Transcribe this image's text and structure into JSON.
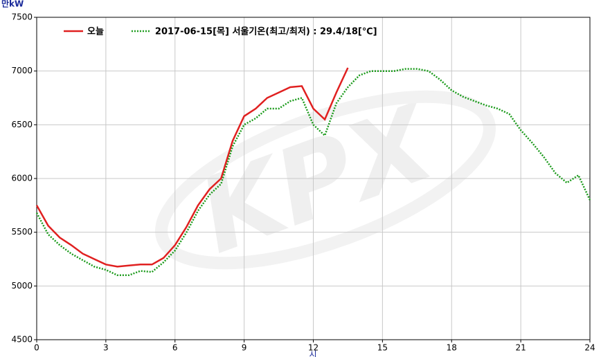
{
  "chart_data": {
    "type": "line",
    "ylabel": "만kW",
    "xlabel": "시",
    "watermark": "KPX",
    "x": [
      0,
      0.5,
      1,
      1.5,
      2,
      2.5,
      3,
      3.5,
      4,
      4.5,
      5,
      5.5,
      6,
      6.5,
      7,
      7.5,
      8,
      8.5,
      9,
      9.5,
      10,
      10.5,
      11,
      11.5,
      12,
      12.5,
      13,
      13.5,
      14,
      14.5,
      15,
      15.5,
      16,
      16.5,
      17,
      17.5,
      18,
      18.5,
      19,
      19.5,
      20,
      20.5,
      21,
      21.5,
      22,
      22.5,
      23,
      23.5,
      24
    ],
    "series": [
      {
        "name": "오늘",
        "color": "#e02020",
        "style": "solid",
        "values": [
          5750,
          5560,
          5450,
          5380,
          5300,
          5250,
          5200,
          5180,
          5190,
          5200,
          5200,
          5260,
          5380,
          5550,
          5750,
          5900,
          6000,
          6350,
          6580,
          6650,
          6750,
          6800,
          6850,
          6860,
          6650,
          6550,
          6800,
          7030,
          null,
          null,
          null,
          null,
          null,
          null,
          null,
          null,
          null,
          null,
          null,
          null,
          null,
          null,
          null,
          null,
          null,
          null,
          null,
          null,
          null
        ]
      },
      {
        "name": "2017-06-15[목] 서울기온(최고/최저) : 29.4/18[℃]",
        "color": "#1a9a1a",
        "style": "dotted",
        "values": [
          5680,
          5480,
          5380,
          5300,
          5240,
          5180,
          5150,
          5100,
          5100,
          5140,
          5130,
          5220,
          5330,
          5500,
          5700,
          5850,
          5950,
          6300,
          6500,
          6560,
          6650,
          6650,
          6720,
          6750,
          6500,
          6400,
          6700,
          6850,
          6960,
          7000,
          7000,
          7000,
          7020,
          7020,
          7000,
          6920,
          6820,
          6760,
          6720,
          6680,
          6650,
          6600,
          6450,
          6330,
          6200,
          6050,
          5960,
          6030,
          5800
        ]
      }
    ],
    "xlim": [
      0,
      24
    ],
    "xticks": [
      0,
      3,
      6,
      9,
      12,
      15,
      18,
      21,
      24
    ],
    "ylim": [
      4500,
      7500
    ],
    "yticks": [
      4500,
      5000,
      5500,
      6000,
      6500,
      7000,
      7500
    ],
    "grid": true
  }
}
